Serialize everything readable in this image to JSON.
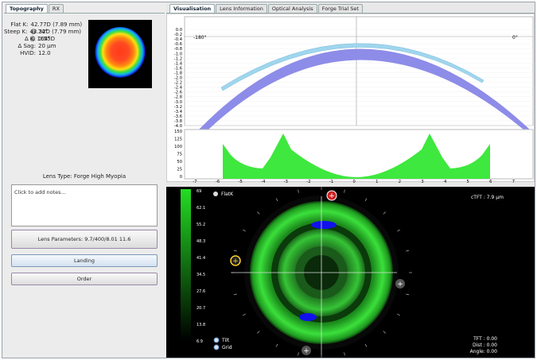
{
  "left_tabs": [
    "Topography",
    "RX"
  ],
  "right_tabs": [
    "Visualisation",
    "Lens Information",
    "Optical Analysis",
    "Forge Trial Set"
  ],
  "topo_info": [
    {
      "label": "Flat K:",
      "value": "42.77D (7.89 mm) @ 74°"
    },
    {
      "label": "Steep K:",
      "value": "43.32D (7.79 mm) @ 164°"
    },
    {
      "label": "Δ K:",
      "value": "0.55D"
    },
    {
      "label": "Δ Sag:",
      "value": "20 µm"
    },
    {
      "label": "HVID:",
      "value": "12.0"
    }
  ],
  "lens_type": "Lens Type: Forge High Myopia",
  "notes_placeholder": "Click to add notes...",
  "params_label": "Lens Parameters:",
  "params_value": "9.7/400/8.01 11.6",
  "landing_label": "Landing",
  "order_label": "Order",
  "profile": {
    "left_marker": "-180°",
    "right_marker": "0°",
    "yticks": [
      "0.0",
      "-0.2",
      "-0.4",
      "-0.6",
      "-0.8",
      "-1.0",
      "-1.2",
      "-1.4",
      "-1.6",
      "-1.8",
      "-2.0",
      "-2.2",
      "-2.4",
      "-2.6",
      "-2.8",
      "-3.0",
      "-3.2",
      "-3.4",
      "-3.6",
      "-3.8",
      "-4.0"
    ]
  },
  "clearance": {
    "yticks": [
      "150",
      "125",
      "100",
      "75",
      "50",
      "25",
      "0"
    ],
    "xticks": [
      "-7",
      "-6",
      "-5",
      "-4",
      "-3",
      "-2",
      "-1",
      "0",
      "1",
      "2",
      "3",
      "4",
      "5",
      "6",
      "7"
    ]
  },
  "fluo": {
    "scale": [
      "69",
      "62.1",
      "55.2",
      "48.3",
      "41.4",
      "34.5",
      "27.6",
      "20.7",
      "13.8",
      "6.9"
    ],
    "flatk": "FlatK",
    "ctft": "cTFT : 7.9 µm",
    "tilt": "Tilt",
    "grid": "Grid",
    "tft": "TFT : 0.00",
    "dist": "Dist : 0.00",
    "angle": "Angle: 0.00",
    "colors": {
      "green": "#33cc33",
      "bg": "#000000"
    }
  }
}
